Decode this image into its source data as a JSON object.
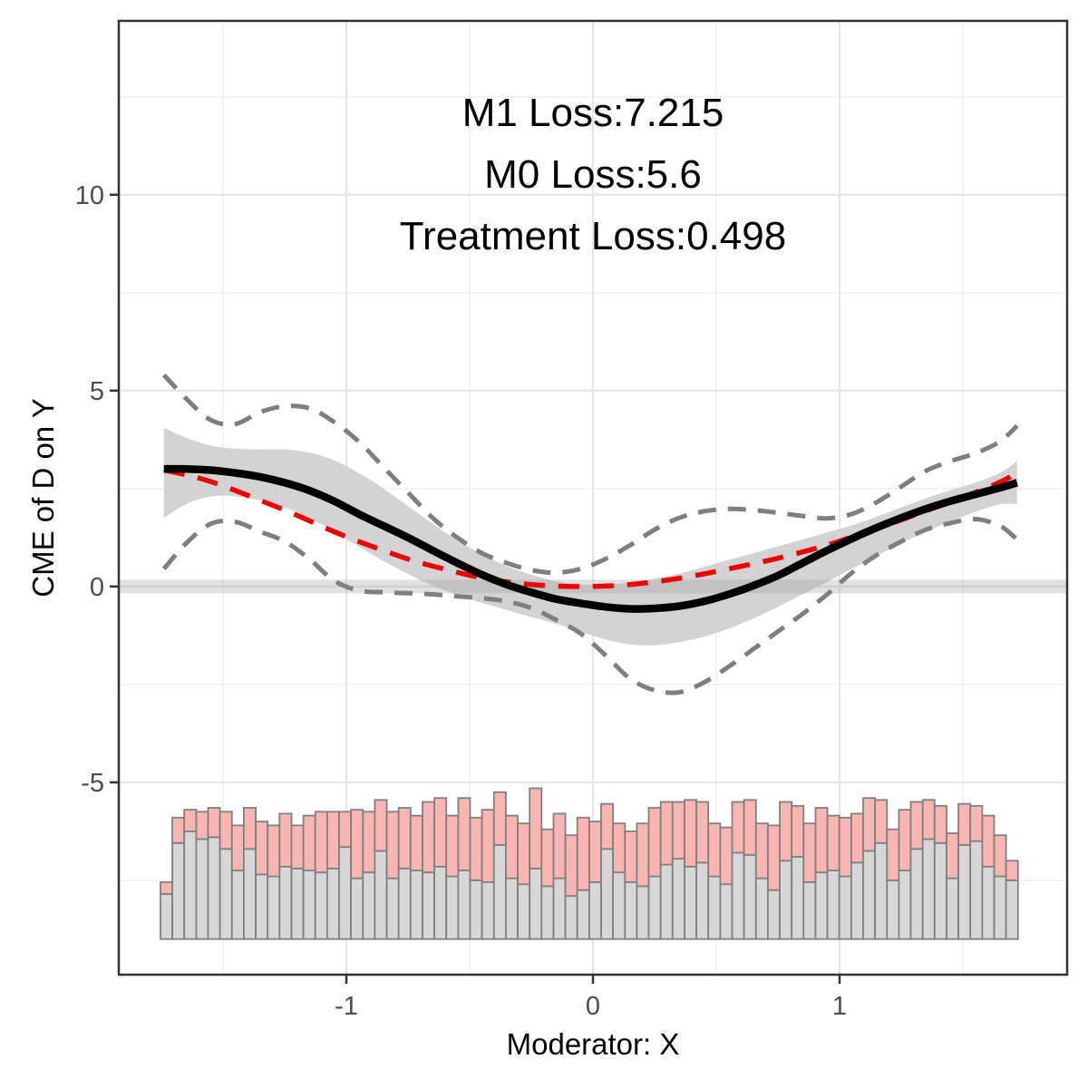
{
  "chart_data": {
    "type": "line",
    "title": "",
    "xlabel": "Moderator: X",
    "ylabel": "CME of D on Y",
    "xlim": [
      -1.923,
      1.923
    ],
    "ylim": [
      -9.91,
      14.44
    ],
    "x_ticks": [
      {
        "v": -1,
        "label": "-1"
      },
      {
        "v": 0,
        "label": "0"
      },
      {
        "v": 1,
        "label": "1"
      }
    ],
    "y_ticks": [
      {
        "v": -5,
        "label": "-5"
      },
      {
        "v": 0,
        "label": "0"
      },
      {
        "v": 5,
        "label": "5"
      },
      {
        "v": 10,
        "label": "10"
      }
    ],
    "x_minor_ticks": [
      -1.5,
      -0.5,
      0.5,
      1.5
    ],
    "y_minor_ticks": [
      -7.5,
      -2.5,
      2.5,
      7.5,
      12.5
    ],
    "grid": true,
    "legend": "none",
    "annotations": [
      "M1 Loss:7.215",
      "M0 Loss:5.6",
      "Treatment Loss:0.498"
    ],
    "losses": {
      "m1": 7.215,
      "m0": 5.6,
      "treatment": 0.498
    },
    "zero_reference_line": 0,
    "series": {
      "x": [
        -1.74,
        -1.65,
        -1.55,
        -1.45,
        -1.35,
        -1.25,
        -1.15,
        -1.05,
        -0.95,
        -0.85,
        -0.75,
        -0.65,
        -0.55,
        -0.45,
        -0.35,
        -0.25,
        -0.15,
        -0.05,
        0.05,
        0.15,
        0.25,
        0.35,
        0.45,
        0.55,
        0.65,
        0.75,
        0.85,
        0.95,
        1.05,
        1.15,
        1.25,
        1.35,
        1.45,
        1.55,
        1.65,
        1.72
      ],
      "kernel_estimate": [
        3.0,
        3.0,
        2.97,
        2.9,
        2.8,
        2.65,
        2.45,
        2.18,
        1.85,
        1.55,
        1.25,
        0.92,
        0.6,
        0.3,
        0.05,
        -0.15,
        -0.32,
        -0.43,
        -0.52,
        -0.57,
        -0.56,
        -0.5,
        -0.38,
        -0.2,
        0.02,
        0.28,
        0.6,
        0.92,
        1.22,
        1.5,
        1.75,
        1.98,
        2.18,
        2.35,
        2.52,
        2.65
      ],
      "true_effect": [
        2.97,
        2.85,
        2.68,
        2.45,
        2.2,
        1.95,
        1.68,
        1.4,
        1.15,
        0.92,
        0.7,
        0.52,
        0.36,
        0.22,
        0.12,
        0.05,
        0.01,
        0.0,
        0.01,
        0.05,
        0.12,
        0.21,
        0.32,
        0.45,
        0.58,
        0.72,
        0.88,
        1.06,
        1.26,
        1.47,
        1.7,
        1.93,
        2.16,
        2.4,
        2.66,
        2.9
      ],
      "ci_upper": [
        5.4,
        4.8,
        4.25,
        4.15,
        4.45,
        4.6,
        4.55,
        4.2,
        3.7,
        3.05,
        2.4,
        1.75,
        1.25,
        0.85,
        0.6,
        0.42,
        0.35,
        0.45,
        0.7,
        1.05,
        1.45,
        1.75,
        1.92,
        1.98,
        1.95,
        1.88,
        1.8,
        1.74,
        1.85,
        2.15,
        2.55,
        2.95,
        3.2,
        3.4,
        3.7,
        4.1
      ],
      "ci_lower": [
        0.45,
        1.1,
        1.6,
        1.65,
        1.4,
        1.15,
        0.7,
        0.15,
        -0.1,
        -0.15,
        -0.17,
        -0.2,
        -0.25,
        -0.3,
        -0.38,
        -0.55,
        -0.85,
        -1.2,
        -1.75,
        -2.35,
        -2.65,
        -2.7,
        -2.45,
        -2.05,
        -1.6,
        -1.15,
        -0.7,
        -0.2,
        0.35,
        0.8,
        1.15,
        1.45,
        1.62,
        1.72,
        1.55,
        1.2
      ],
      "ribbon_upper": [
        4.05,
        3.8,
        3.6,
        3.52,
        3.5,
        3.5,
        3.42,
        3.22,
        2.9,
        2.5,
        2.05,
        1.6,
        1.18,
        0.82,
        0.52,
        0.3,
        0.13,
        0.05,
        0.05,
        0.1,
        0.2,
        0.33,
        0.5,
        0.68,
        0.85,
        1.02,
        1.2,
        1.38,
        1.56,
        1.78,
        2.02,
        2.25,
        2.46,
        2.65,
        2.9,
        3.2
      ],
      "ribbon_lower": [
        1.75,
        2.1,
        2.3,
        2.3,
        2.2,
        2.02,
        1.75,
        1.4,
        1.02,
        0.65,
        0.32,
        0.02,
        -0.22,
        -0.42,
        -0.6,
        -0.78,
        -0.95,
        -1.15,
        -1.35,
        -1.48,
        -1.5,
        -1.42,
        -1.28,
        -1.08,
        -0.82,
        -0.52,
        -0.2,
        0.12,
        0.45,
        0.78,
        1.1,
        1.4,
        1.66,
        1.9,
        2.1,
        2.1
      ]
    },
    "histogram": {
      "x_start": -1.754,
      "bin_width": 0.0483,
      "base": -9.0,
      "control_heights": [
        1.15,
        2.45,
        2.75,
        2.55,
        2.6,
        2.3,
        1.75,
        2.3,
        1.65,
        1.6,
        1.85,
        1.8,
        1.75,
        1.7,
        1.8,
        2.35,
        1.55,
        1.7,
        2.25,
        1.55,
        1.8,
        1.75,
        1.7,
        1.85,
        1.6,
        1.75,
        1.5,
        1.45,
        2.4,
        1.55,
        1.4,
        1.8,
        1.35,
        1.55,
        1.1,
        1.25,
        1.45,
        2.3,
        1.7,
        1.45,
        1.35,
        1.6,
        1.9,
        2.05,
        1.85,
        1.95,
        1.6,
        1.4,
        2.2,
        2.15,
        1.55,
        1.25,
        2.0,
        2.1,
        1.45,
        1.7,
        1.75,
        1.6,
        1.95,
        2.25,
        2.45,
        1.5,
        1.75,
        2.3,
        2.55,
        2.45,
        1.55,
        2.4,
        2.5,
        1.85,
        1.6,
        1.5
      ],
      "treated_heights": [
        0.3,
        0.65,
        0.55,
        0.7,
        0.75,
        0.95,
        1.15,
        1.05,
        1.35,
        1.3,
        1.35,
        1.1,
        1.4,
        1.55,
        1.45,
        0.9,
        1.75,
        1.55,
        1.3,
        1.7,
        1.55,
        1.4,
        1.8,
        1.75,
        1.55,
        1.85,
        1.6,
        1.85,
        1.35,
        1.6,
        1.55,
        2.05,
        1.45,
        1.65,
        1.55,
        1.85,
        1.55,
        1.15,
        1.25,
        1.3,
        1.6,
        1.75,
        1.6,
        1.45,
        1.7,
        1.55,
        1.35,
        1.45,
        1.3,
        1.4,
        1.4,
        1.65,
        1.5,
        1.3,
        1.5,
        1.65,
        1.4,
        1.5,
        1.25,
        1.35,
        1.1,
        1.3,
        1.55,
        1.2,
        1.0,
        0.95,
        1.15,
        1.05,
        0.9,
        1.3,
        1.05,
        0.5
      ]
    },
    "colors": {
      "estimate_line": "#000000",
      "true_line": "#F00000",
      "ci_line": "#7F7F7F",
      "ribbon": "#D3D3D3",
      "zero_band": "#9B9B9B",
      "hist_control_fill": "#D7D7D7",
      "hist_treated_fill": "#F9B5B2",
      "hist_border": "#808080",
      "grid_major": "#E6E6E6",
      "grid_minor": "#F0F0F0",
      "panel_border": "#333333",
      "tick_text": "#4D4D4D"
    }
  }
}
